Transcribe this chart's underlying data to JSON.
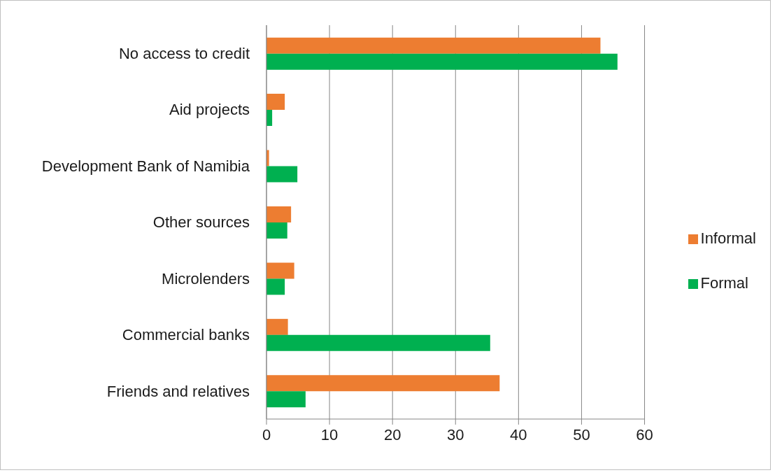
{
  "chart_data": {
    "type": "bar",
    "orientation": "horizontal",
    "categories": [
      "No access to credit",
      "Aid projects",
      "Development Bank of Namibia",
      "Other sources",
      "Microlenders",
      "Commercial banks",
      "Friends and relatives"
    ],
    "series": [
      {
        "name": "Informal",
        "color": "#ed7d31",
        "values": [
          53.0,
          2.9,
          0.4,
          3.9,
          4.4,
          3.4,
          37.0
        ]
      },
      {
        "name": "Formal",
        "color": "#00b050",
        "values": [
          55.7,
          0.9,
          4.9,
          3.3,
          2.9,
          35.5,
          6.2
        ]
      }
    ],
    "xlim": [
      0,
      60
    ],
    "xticks": [
      0,
      10,
      20,
      30,
      40,
      50,
      60
    ],
    "grid": "x",
    "legend": "right"
  }
}
